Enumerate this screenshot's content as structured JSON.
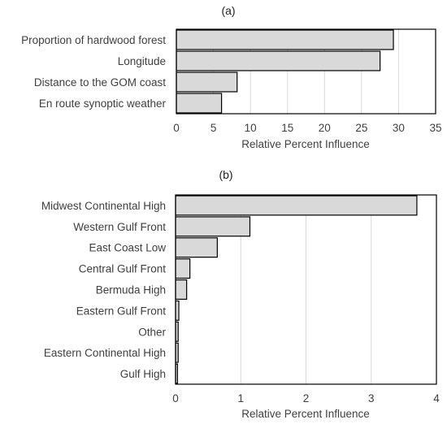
{
  "chart_data": [
    {
      "type": "bar",
      "orientation": "horizontal",
      "panel_label": "(a)",
      "categories": [
        "Proportion of hardwood forest",
        "Longitude",
        "Distance to the GOM coast",
        "En route synoptic weather"
      ],
      "values": [
        29.3,
        27.5,
        8.2,
        6.1
      ],
      "xlabel": "Relative Percent Influence",
      "ylabel": "",
      "xlim": [
        0,
        35
      ],
      "xticks": [
        "0",
        "5",
        "10",
        "15",
        "20",
        "25",
        "30",
        "35"
      ],
      "grid": "vertical",
      "bar_color": "#d9d9d9"
    },
    {
      "type": "bar",
      "orientation": "horizontal",
      "panel_label": "(b)",
      "categories": [
        "Midwest Continental High",
        "Western Gulf Front",
        "East Coast Low",
        "Central Gulf Front",
        "Bermuda High",
        "Eastern Gulf Front",
        "Other",
        "Eastern Continental High",
        "Gulf High"
      ],
      "values": [
        3.7,
        1.14,
        0.64,
        0.22,
        0.17,
        0.05,
        0.04,
        0.04,
        0.03
      ],
      "xlabel": "Relative Percent Influence",
      "ylabel": "",
      "xlim": [
        0,
        4
      ],
      "xticks": [
        "0",
        "1",
        "2",
        "3",
        "4"
      ],
      "grid": "vertical",
      "bar_color": "#d9d9d9"
    }
  ]
}
